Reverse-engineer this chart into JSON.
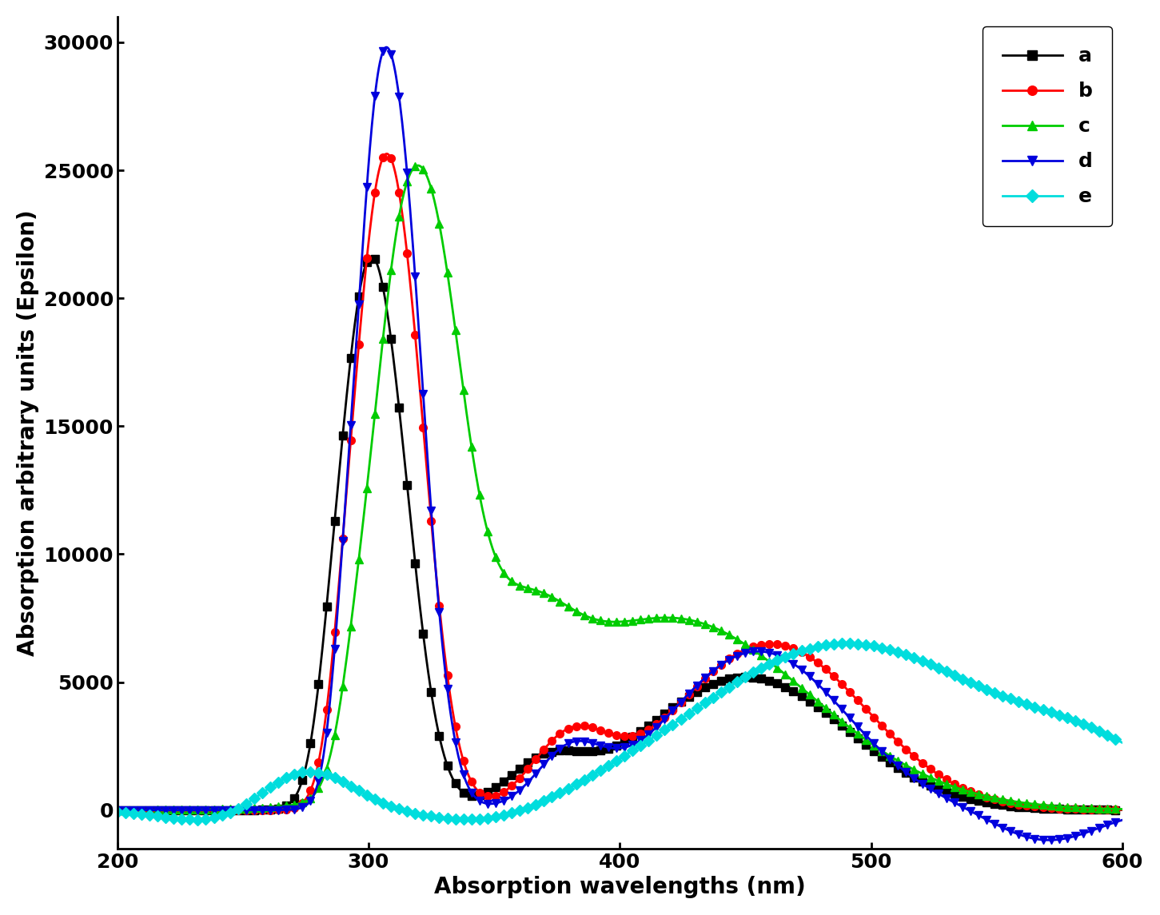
{
  "title": "",
  "xlabel": "Absorption wavelengths (nm)",
  "ylabel": "Absorption arbitrary units (Epsilon)",
  "xlim": [
    200,
    600
  ],
  "ylim": [
    -1500,
    31000
  ],
  "yticks": [
    0,
    5000,
    10000,
    15000,
    20000,
    25000,
    30000
  ],
  "xticks": [
    200,
    300,
    400,
    500,
    600
  ],
  "series": {
    "a": {
      "color": "#000000",
      "marker": "s",
      "linestyle": "-",
      "label": "a"
    },
    "b": {
      "color": "#ff0000",
      "marker": "o",
      "linestyle": "-",
      "label": "b"
    },
    "c": {
      "color": "#00cc00",
      "marker": "^",
      "linestyle": "-",
      "label": "c"
    },
    "d": {
      "color": "#0000dd",
      "marker": "v",
      "linestyle": "-",
      "label": "d"
    },
    "e": {
      "color": "#00dddd",
      "marker": "D",
      "linestyle": "-",
      "label": "e"
    }
  },
  "legend_loc": "upper right",
  "legend_fontsize": 18,
  "axis_label_fontsize": 20,
  "tick_fontsize": 18,
  "linewidth": 2.0,
  "markersize": 7,
  "marker_every": 8
}
